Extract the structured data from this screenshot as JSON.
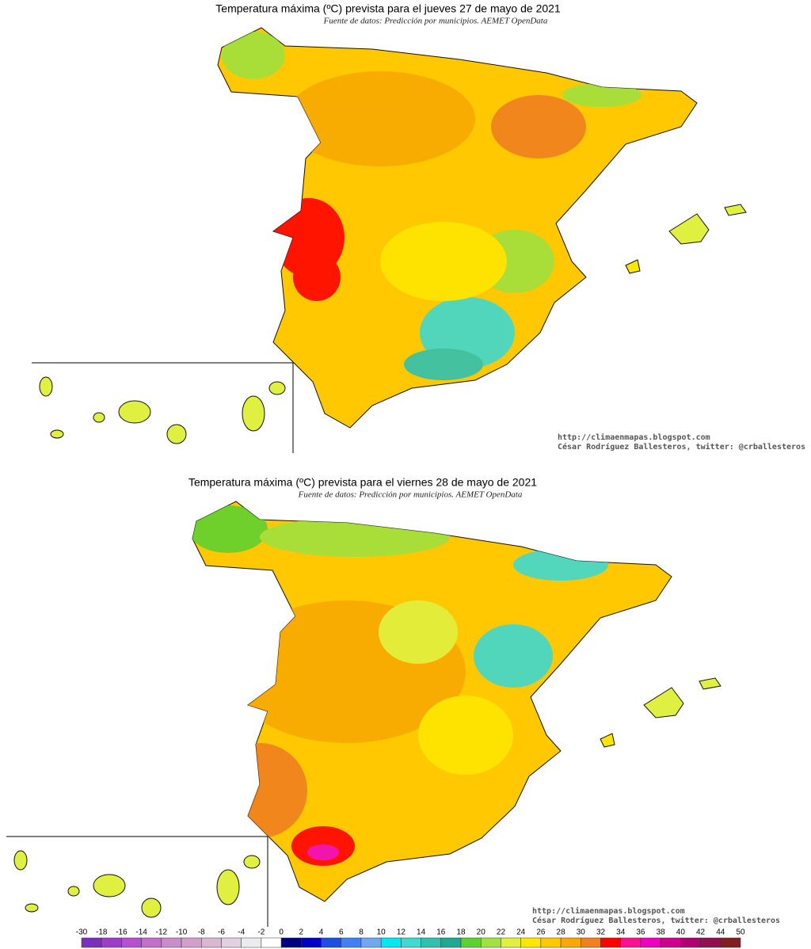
{
  "maps": [
    {
      "title": "Temperatura máxima (ºC) prevista para el jueves 27 de mayo de 2021",
      "source": "Fuente de datos: Predicción por municipios. AEMET OpenData",
      "credit_url": "http://climaenmapas.blogspot.com",
      "credit_author": "César Rodríguez Ballesteros, twitter: @crballesteros"
    },
    {
      "title": "Temperatura máxima (ºC) prevista para el viernes 28 de mayo de 2021",
      "source": "Fuente de datos: Predicción por municipios. AEMET OpenData",
      "credit_url": "http://climaenmapas.blogspot.com",
      "credit_author": "César Rodríguez Ballesteros, twitter: @crballesteros"
    }
  ],
  "legend": {
    "labels": [
      -30,
      -18,
      -16,
      -14,
      -12,
      -10,
      -8,
      -6,
      -4,
      -2,
      0,
      2,
      4,
      6,
      8,
      10,
      12,
      14,
      16,
      18,
      20,
      22,
      24,
      26,
      28,
      30,
      32,
      34,
      36,
      38,
      40,
      42,
      44,
      50
    ],
    "colors": [
      "#7b2fbe",
      "#9b3fc8",
      "#b44fd0",
      "#c070c8",
      "#c88cc8",
      "#d0a0c8",
      "#d8b8d0",
      "#e0d0e0",
      "#ececf0",
      "#ffffff",
      "#000080",
      "#0000c8",
      "#1e50e0",
      "#4080f0",
      "#70a8f0",
      "#00e8f0",
      "#40d8d0",
      "#30c0b0",
      "#20a890",
      "#60d030",
      "#a0e040",
      "#e0f040",
      "#ffe600",
      "#ffc800",
      "#f8a800",
      "#f08020",
      "#ff0000",
      "#ff1090",
      "#f000c0",
      "#d0008c",
      "#b00070",
      "#901050",
      "#802020"
    ]
  }
}
